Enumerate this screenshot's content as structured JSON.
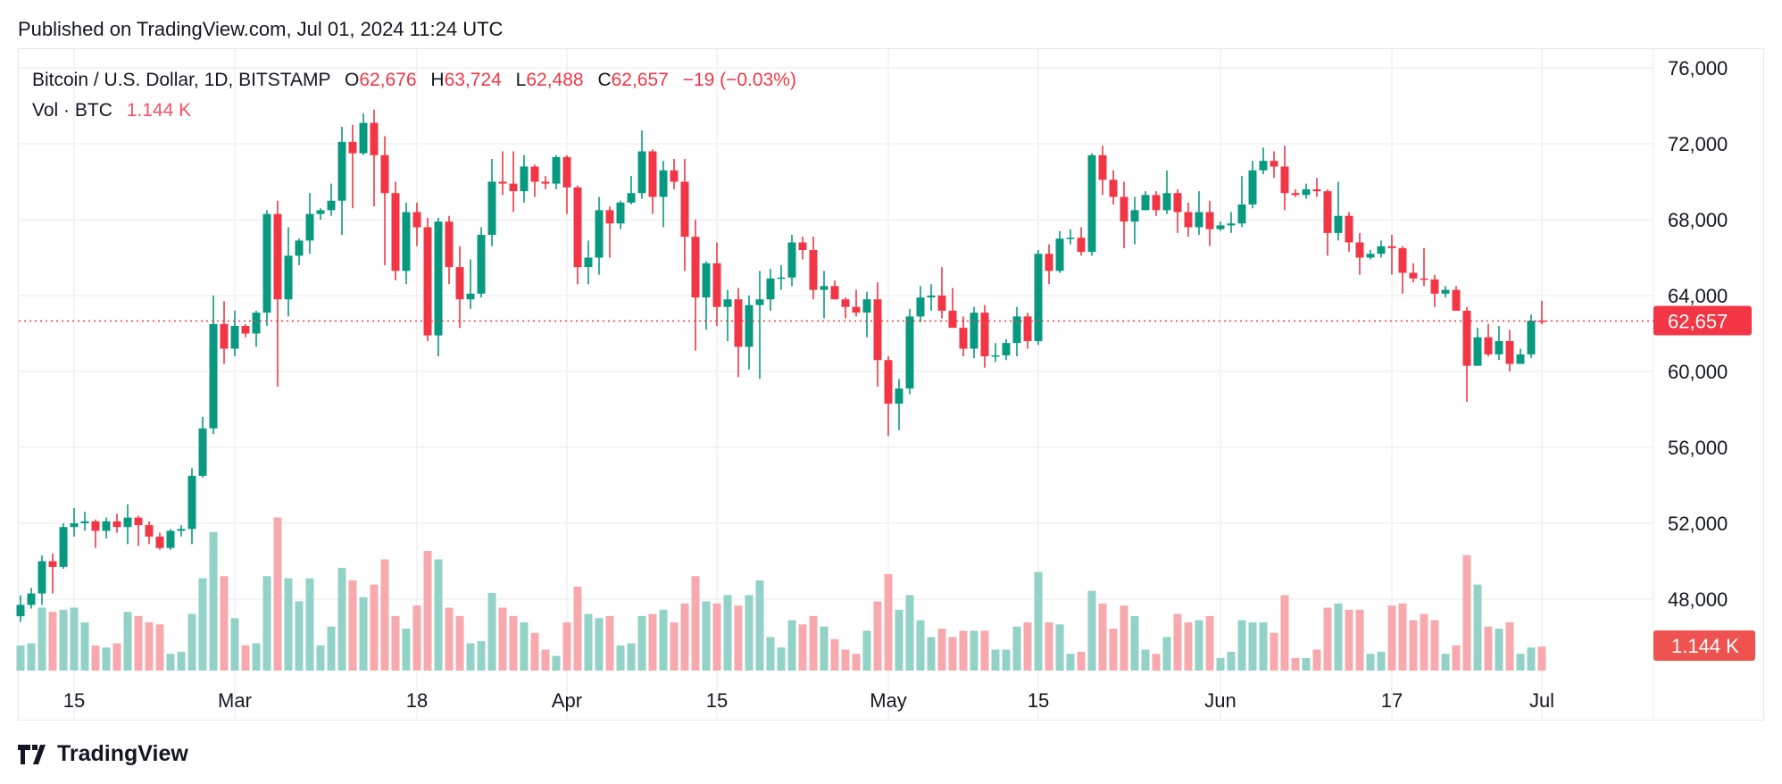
{
  "published": "Published on TradingView.com, Jul 01, 2024 11:24 UTC",
  "legend": {
    "symbol": "Bitcoin / U.S. Dollar, 1D, BITSTAMP",
    "o_label": "O",
    "o": "62,676",
    "h_label": "H",
    "h": "63,724",
    "l_label": "L",
    "l": "62,488",
    "c_label": "C",
    "c": "62,657",
    "change": "−19 (−0.03%)",
    "vol_label": "Vol · BTC",
    "vol": "1.144 K"
  },
  "logo": {
    "text": "TradingView",
    "icon": "tradingview-logo-icon"
  },
  "chart_data": {
    "type": "candlestick",
    "title": "",
    "colors": {
      "up": "#089981",
      "down": "#F23645",
      "vol_up": "#92d2c7",
      "vol_down": "#f8a9ad"
    },
    "ylim": [
      46000,
      77500
    ],
    "y_ticks": [
      "76,000",
      "72,000",
      "68,000",
      "64,000",
      "60,000",
      "56,000",
      "52,000",
      "48,000"
    ],
    "y_tick_values": [
      76000,
      72000,
      68000,
      64000,
      60000,
      56000,
      52000,
      48000
    ],
    "x_ticks": [
      {
        "label": "15",
        "date": "2024-02-15"
      },
      {
        "label": "Mar",
        "date": "2024-03-01"
      },
      {
        "label": "18",
        "date": "2024-03-18"
      },
      {
        "label": "Apr",
        "date": "2024-04-01"
      },
      {
        "label": "15",
        "date": "2024-04-15"
      },
      {
        "label": "May",
        "date": "2024-05-01"
      },
      {
        "label": "15",
        "date": "2024-05-15"
      },
      {
        "label": "Jun",
        "date": "2024-06-01"
      },
      {
        "label": "17",
        "date": "2024-06-17"
      },
      {
        "label": "Jul",
        "date": "2024-07-01"
      }
    ],
    "last_price_label": "62,657",
    "last_price": 62657,
    "last_volume_label": "1.144 K",
    "grid": true,
    "columns": [
      "date",
      "open",
      "high",
      "low",
      "close",
      "volume_k_btc"
    ],
    "candles": [
      [
        "2024-02-10",
        47100,
        48200,
        46800,
        47700,
        1.2
      ],
      [
        "2024-02-11",
        47700,
        48600,
        47500,
        48300,
        1.3
      ],
      [
        "2024-02-12",
        48300,
        50300,
        47700,
        50000,
        3.0
      ],
      [
        "2024-02-13",
        50000,
        50400,
        48300,
        49700,
        2.8
      ],
      [
        "2024-02-14",
        49700,
        52000,
        49600,
        51800,
        2.9
      ],
      [
        "2024-02-15",
        51800,
        52800,
        51300,
        52000,
        3.0
      ],
      [
        "2024-02-16",
        52000,
        52600,
        51600,
        52100,
        2.3
      ],
      [
        "2024-02-17",
        52100,
        52200,
        50700,
        51600,
        1.2
      ],
      [
        "2024-02-18",
        51600,
        52300,
        51200,
        52100,
        1.1
      ],
      [
        "2024-02-19",
        52100,
        52500,
        51500,
        51800,
        1.3
      ],
      [
        "2024-02-20",
        51800,
        53000,
        50900,
        52300,
        2.8
      ],
      [
        "2024-02-21",
        52300,
        52400,
        50800,
        51900,
        2.6
      ],
      [
        "2024-02-22",
        51900,
        52100,
        50900,
        51300,
        2.3
      ],
      [
        "2024-02-23",
        51300,
        51500,
        50600,
        50700,
        2.2
      ],
      [
        "2024-02-24",
        50700,
        51700,
        50600,
        51600,
        0.8
      ],
      [
        "2024-02-25",
        51600,
        51900,
        51300,
        51700,
        0.9
      ],
      [
        "2024-02-26",
        51700,
        54900,
        50900,
        54500,
        2.7
      ],
      [
        "2024-02-27",
        54500,
        57600,
        54400,
        57000,
        4.4
      ],
      [
        "2024-02-28",
        57000,
        64000,
        56700,
        62500,
        6.6
      ],
      [
        "2024-02-29",
        62500,
        63700,
        60400,
        61200,
        4.5
      ],
      [
        "2024-03-01",
        61200,
        63200,
        60800,
        62400,
        2.5
      ],
      [
        "2024-03-02",
        62400,
        62500,
        61800,
        62000,
        1.2
      ],
      [
        "2024-03-03",
        62000,
        63200,
        61300,
        63100,
        1.3
      ],
      [
        "2024-03-04",
        63100,
        68500,
        62400,
        68300,
        4.5
      ],
      [
        "2024-03-05",
        68300,
        69000,
        59200,
        63800,
        7.3
      ],
      [
        "2024-03-06",
        63800,
        67600,
        62900,
        66100,
        4.4
      ],
      [
        "2024-03-07",
        66100,
        67000,
        65600,
        66900,
        3.3
      ],
      [
        "2024-03-08",
        66900,
        69400,
        66200,
        68300,
        4.4
      ],
      [
        "2024-03-09",
        68300,
        68600,
        68000,
        68500,
        1.2
      ],
      [
        "2024-03-10",
        68500,
        69900,
        68200,
        69000,
        2.1
      ],
      [
        "2024-03-11",
        69000,
        72900,
        67200,
        72100,
        4.9
      ],
      [
        "2024-03-12",
        72100,
        73000,
        68600,
        71500,
        4.3
      ],
      [
        "2024-03-13",
        71500,
        73600,
        71400,
        73100,
        3.5
      ],
      [
        "2024-03-14",
        73100,
        73800,
        68700,
        71400,
        4.1
      ],
      [
        "2024-03-15",
        71400,
        72400,
        65600,
        69400,
        5.3
      ],
      [
        "2024-03-16",
        69400,
        70000,
        64800,
        65300,
        2.6
      ],
      [
        "2024-03-17",
        65300,
        68900,
        64600,
        68400,
        2.0
      ],
      [
        "2024-03-18",
        68400,
        68900,
        66600,
        67600,
        3.1
      ],
      [
        "2024-03-19",
        67600,
        68100,
        61600,
        61900,
        5.7
      ],
      [
        "2024-03-20",
        61900,
        68100,
        60800,
        67900,
        5.3
      ],
      [
        "2024-03-21",
        67900,
        68200,
        64600,
        65500,
        3.0
      ],
      [
        "2024-03-22",
        65500,
        66600,
        62300,
        63800,
        2.6
      ],
      [
        "2024-03-23",
        63800,
        65900,
        63300,
        64100,
        1.3
      ],
      [
        "2024-03-24",
        64100,
        67600,
        63900,
        67200,
        1.4
      ],
      [
        "2024-03-25",
        67200,
        71200,
        66600,
        70000,
        3.7
      ],
      [
        "2024-03-26",
        70000,
        71600,
        69300,
        69900,
        3.0
      ],
      [
        "2024-03-27",
        69900,
        71600,
        68400,
        69500,
        2.6
      ],
      [
        "2024-03-28",
        69500,
        71400,
        68900,
        70800,
        2.3
      ],
      [
        "2024-03-29",
        70800,
        70900,
        69200,
        70000,
        1.8
      ],
      [
        "2024-03-30",
        70000,
        70300,
        69600,
        69900,
        1.0
      ],
      [
        "2024-03-31",
        69900,
        71400,
        69600,
        71300,
        0.7
      ],
      [
        "2024-04-01",
        71300,
        71400,
        68300,
        69700,
        2.3
      ],
      [
        "2024-04-02",
        69700,
        69800,
        64600,
        65500,
        4.0
      ],
      [
        "2024-04-03",
        65500,
        66900,
        64600,
        66000,
        2.7
      ],
      [
        "2024-04-04",
        66000,
        69200,
        65100,
        68500,
        2.5
      ],
      [
        "2024-04-05",
        68500,
        68700,
        66000,
        67800,
        2.6
      ],
      [
        "2024-04-06",
        67800,
        69000,
        67500,
        68900,
        1.2
      ],
      [
        "2024-04-07",
        68900,
        70300,
        68800,
        69400,
        1.3
      ],
      [
        "2024-04-08",
        69400,
        72700,
        69100,
        71600,
        2.6
      ],
      [
        "2024-04-09",
        71600,
        71700,
        68300,
        69200,
        2.7
      ],
      [
        "2024-04-10",
        69200,
        71100,
        67600,
        70600,
        2.9
      ],
      [
        "2024-04-11",
        70600,
        71200,
        69600,
        70000,
        2.3
      ],
      [
        "2024-04-12",
        70000,
        71200,
        65300,
        67100,
        3.2
      ],
      [
        "2024-04-13",
        67100,
        68000,
        61100,
        63900,
        4.5
      ],
      [
        "2024-04-14",
        63900,
        65800,
        62200,
        65700,
        3.3
      ],
      [
        "2024-04-15",
        65700,
        66800,
        62400,
        63400,
        3.2
      ],
      [
        "2024-04-16",
        63400,
        64300,
        61600,
        63800,
        3.6
      ],
      [
        "2024-04-17",
        63800,
        64400,
        59700,
        61300,
        3.1
      ],
      [
        "2024-04-18",
        61300,
        64000,
        60100,
        63500,
        3.6
      ],
      [
        "2024-04-19",
        63500,
        65300,
        59600,
        63800,
        4.3
      ],
      [
        "2024-04-20",
        63800,
        65400,
        63200,
        64900,
        1.6
      ],
      [
        "2024-04-21",
        64900,
        65600,
        64300,
        64950,
        1.1
      ],
      [
        "2024-04-22",
        64950,
        67200,
        64500,
        66800,
        2.4
      ],
      [
        "2024-04-23",
        66800,
        67100,
        65900,
        66400,
        2.2
      ],
      [
        "2024-04-24",
        66400,
        67100,
        63800,
        64300,
        2.6
      ],
      [
        "2024-04-25",
        64300,
        65300,
        62800,
        64500,
        2.1
      ],
      [
        "2024-04-26",
        64500,
        64800,
        63800,
        63800,
        1.5
      ],
      [
        "2024-04-27",
        63800,
        63900,
        62800,
        63400,
        1.0
      ],
      [
        "2024-04-28",
        63400,
        64300,
        62900,
        63100,
        0.8
      ],
      [
        "2024-04-29",
        63100,
        64200,
        61800,
        63800,
        1.9
      ],
      [
        "2024-04-30",
        63800,
        64700,
        59200,
        60600,
        3.3
      ],
      [
        "2024-05-01",
        60600,
        60800,
        56600,
        58300,
        4.6
      ],
      [
        "2024-05-02",
        58300,
        59600,
        56900,
        59100,
        2.9
      ],
      [
        "2024-05-03",
        59100,
        63300,
        58800,
        62900,
        3.6
      ],
      [
        "2024-05-04",
        62900,
        64500,
        62600,
        63900,
        2.4
      ],
      [
        "2024-05-05",
        63900,
        64600,
        63200,
        64000,
        1.6
      ],
      [
        "2024-05-06",
        64000,
        65500,
        62800,
        63200,
        2.0
      ],
      [
        "2024-05-07",
        63200,
        64400,
        62300,
        62300,
        1.6
      ],
      [
        "2024-05-08",
        62300,
        62900,
        60800,
        61200,
        1.9
      ],
      [
        "2024-05-09",
        61200,
        63400,
        60700,
        63100,
        1.9
      ],
      [
        "2024-05-10",
        63100,
        63500,
        60200,
        60800,
        1.9
      ],
      [
        "2024-05-11",
        60800,
        61500,
        60500,
        60850,
        1.0
      ],
      [
        "2024-05-12",
        60850,
        61700,
        60600,
        61500,
        1.0
      ],
      [
        "2024-05-13",
        61500,
        63400,
        60800,
        62900,
        2.1
      ],
      [
        "2024-05-14",
        62900,
        63100,
        61200,
        61600,
        2.3
      ],
      [
        "2024-05-15",
        61600,
        66400,
        61400,
        66200,
        4.7
      ],
      [
        "2024-05-16",
        66200,
        66700,
        64600,
        65300,
        2.3
      ],
      [
        "2024-05-17",
        65300,
        67400,
        65200,
        67000,
        2.2
      ],
      [
        "2024-05-18",
        67000,
        67500,
        66700,
        67050,
        0.8
      ],
      [
        "2024-05-19",
        67050,
        67600,
        66100,
        66300,
        0.9
      ],
      [
        "2024-05-20",
        66300,
        71500,
        66100,
        71400,
        3.8
      ],
      [
        "2024-05-21",
        71400,
        71900,
        69300,
        70100,
        3.2
      ],
      [
        "2024-05-22",
        70100,
        70600,
        68800,
        69200,
        2.0
      ],
      [
        "2024-05-23",
        69200,
        70000,
        66500,
        67900,
        3.1
      ],
      [
        "2024-05-24",
        67900,
        69200,
        66700,
        68500,
        2.6
      ],
      [
        "2024-05-25",
        68500,
        69500,
        68500,
        69300,
        1.0
      ],
      [
        "2024-05-26",
        69300,
        69500,
        68200,
        68500,
        0.8
      ],
      [
        "2024-05-27",
        68500,
        70600,
        68300,
        69400,
        1.6
      ],
      [
        "2024-05-28",
        69400,
        69600,
        67300,
        68400,
        2.7
      ],
      [
        "2024-05-29",
        68400,
        68900,
        67100,
        67600,
        2.3
      ],
      [
        "2024-05-30",
        67600,
        69500,
        67200,
        68400,
        2.4
      ],
      [
        "2024-05-31",
        68400,
        69000,
        66600,
        67500,
        2.6
      ],
      [
        "2024-06-01",
        67500,
        67900,
        67400,
        67700,
        0.6
      ],
      [
        "2024-06-02",
        67700,
        68400,
        67300,
        67800,
        0.9
      ],
      [
        "2024-06-03",
        67800,
        70300,
        67600,
        68800,
        2.4
      ],
      [
        "2024-06-04",
        68800,
        71100,
        68600,
        70600,
        2.3
      ],
      [
        "2024-06-05",
        70600,
        71800,
        70400,
        71100,
        2.3
      ],
      [
        "2024-06-06",
        71100,
        71600,
        70200,
        70800,
        1.8
      ],
      [
        "2024-06-07",
        70800,
        71900,
        68500,
        69400,
        3.6
      ],
      [
        "2024-06-08",
        69400,
        69600,
        69200,
        69300,
        0.6
      ],
      [
        "2024-06-09",
        69300,
        69900,
        69100,
        69600,
        0.6
      ],
      [
        "2024-06-10",
        69600,
        70200,
        69200,
        69500,
        1.0
      ],
      [
        "2024-06-11",
        69500,
        69600,
        66100,
        67300,
        3.0
      ],
      [
        "2024-06-12",
        67300,
        70000,
        66900,
        68200,
        3.2
      ],
      [
        "2024-06-13",
        68200,
        68400,
        66300,
        66800,
        2.9
      ],
      [
        "2024-06-14",
        66800,
        67300,
        65100,
        66000,
        2.9
      ],
      [
        "2024-06-15",
        66000,
        66400,
        65900,
        66200,
        0.8
      ],
      [
        "2024-06-16",
        66200,
        66900,
        66000,
        66600,
        0.9
      ],
      [
        "2024-06-17",
        66600,
        67200,
        65100,
        66500,
        3.1
      ],
      [
        "2024-06-18",
        66500,
        66600,
        64100,
        65200,
        3.2
      ],
      [
        "2024-06-19",
        65200,
        65700,
        64700,
        64900,
        2.4
      ],
      [
        "2024-06-20",
        64900,
        66500,
        64500,
        64850,
        2.7
      ],
      [
        "2024-06-21",
        64850,
        65100,
        63400,
        64100,
        2.4
      ],
      [
        "2024-06-22",
        64100,
        64500,
        63900,
        64300,
        0.8
      ],
      [
        "2024-06-23",
        64300,
        64500,
        63200,
        63200,
        1.2
      ],
      [
        "2024-06-24",
        63200,
        63400,
        58400,
        60300,
        5.5
      ],
      [
        "2024-06-25",
        60300,
        62300,
        60300,
        61800,
        4.1
      ],
      [
        "2024-06-26",
        61800,
        62500,
        60800,
        60900,
        2.1
      ],
      [
        "2024-06-27",
        60900,
        62400,
        60600,
        61600,
        2.0
      ],
      [
        "2024-06-28",
        61600,
        62200,
        60000,
        60400,
        2.3
      ],
      [
        "2024-06-29",
        60400,
        61200,
        60400,
        60900,
        0.8
      ],
      [
        "2024-06-30",
        60900,
        63000,
        60700,
        62676,
        1.1
      ],
      [
        "2024-07-01",
        62676,
        63724,
        62488,
        62657,
        1.144
      ]
    ]
  }
}
